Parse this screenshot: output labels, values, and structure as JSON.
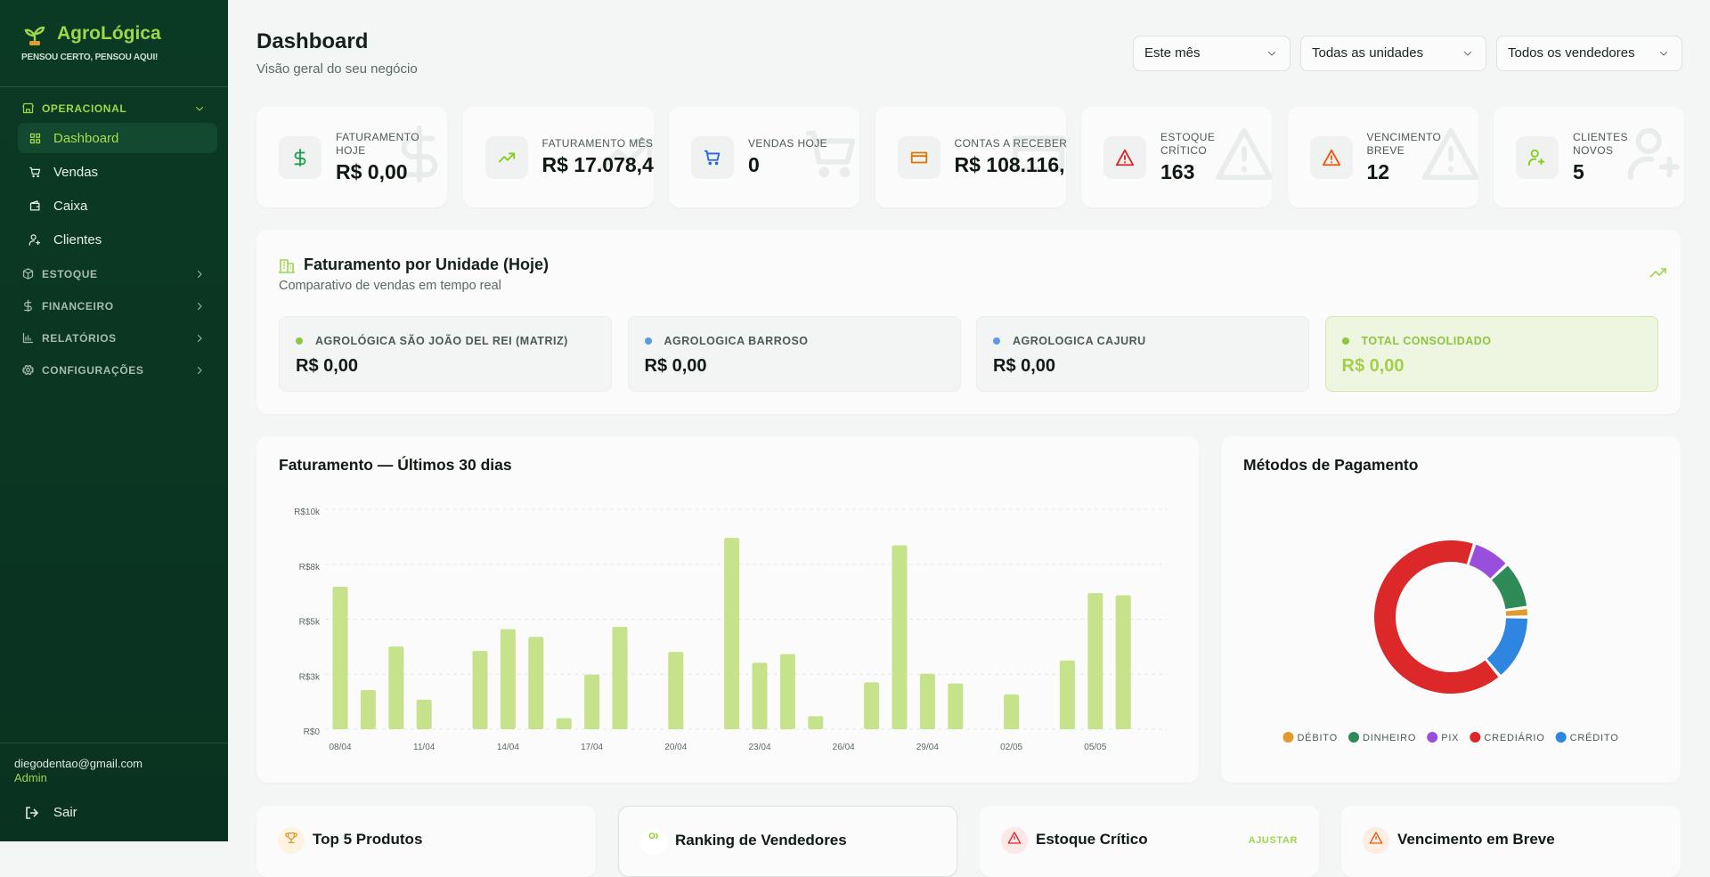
{
  "sidebar": {
    "brand": "AgroLógica",
    "tagline": "PENSOU CERTO, PENSOU AQUI!",
    "sections": [
      {
        "label": "OPERACIONAL",
        "items": [
          "Dashboard",
          "Vendas",
          "Caixa",
          "Clientes"
        ]
      },
      {
        "label": "ESTOQUE"
      },
      {
        "label": "FINANCEIRO"
      },
      {
        "label": "RELATÓRIOS"
      },
      {
        "label": "CONFIGURAÇÕES"
      }
    ],
    "user": {
      "email": "diegodentao@gmail.com",
      "role": "Admin"
    },
    "logout": "Sair"
  },
  "header": {
    "title": "Dashboard",
    "subtitle": "Visão geral do seu negócio",
    "filters": [
      "Este mês",
      "Todas as unidades",
      "Todos os vendedores"
    ]
  },
  "kpis": [
    {
      "label": "FATURAMENTO HOJE",
      "value": "R$ 0,00"
    },
    {
      "label": "FATURAMENTO MÊS",
      "value": "R$ 17.078,4"
    },
    {
      "label": "VENDAS HOJE",
      "value": "0"
    },
    {
      "label": "CONTAS A RECEBER",
      "value": "R$ 108.116,"
    },
    {
      "label": "ESTOQUE CRÍTICO",
      "value": "163"
    },
    {
      "label": "VENCIMENTO BREVE",
      "value": "12"
    },
    {
      "label": "CLIENTES NOVOS",
      "value": "5"
    }
  ],
  "units": {
    "title": "Faturamento por Unidade (Hoje)",
    "subtitle": "Comparativo de vendas em tempo real",
    "items": [
      {
        "name": "AGROLÓGICA SÃO JOÃO DEL REI (MATRIZ)",
        "value": "R$ 0,00"
      },
      {
        "name": "AGROLOGICA BARROSO",
        "value": "R$ 0,00"
      },
      {
        "name": "AGROLOGICA CAJURU",
        "value": "R$ 0,00"
      },
      {
        "name": "TOTAL CONSOLIDADO",
        "value": "R$ 0,00"
      }
    ]
  },
  "chart_data": [
    {
      "type": "bar",
      "title": "Faturamento — Últimos 30 dias",
      "categories": [
        "08/04",
        null,
        null,
        "11/04",
        null,
        null,
        "14/04",
        null,
        null,
        "17/04",
        null,
        null,
        "20/04",
        null,
        null,
        "23/04",
        null,
        null,
        "26/04",
        null,
        null,
        "29/04",
        null,
        null,
        "02/05",
        null,
        null,
        "05/05",
        null,
        null
      ],
      "values": [
        6480,
        1780,
        3760,
        1340,
        0,
        3560,
        4550,
        4200,
        500,
        2480,
        4650,
        0,
        3510,
        0,
        8700,
        3020,
        3410,
        590,
        0,
        2130,
        8360,
        2520,
        2080,
        0,
        1580,
        0,
        3120,
        6190,
        6090,
        0
      ],
      "color": "#c6e28b",
      "ylim": [
        0,
        10000
      ],
      "yticks": [
        {
          "value": 0,
          "label": "R$0"
        },
        {
          "value": 2500,
          "label": "R$3k"
        },
        {
          "value": 5000,
          "label": "R$5k"
        },
        {
          "value": 7500,
          "label": "R$8k"
        },
        {
          "value": 10000,
          "label": "R$10k"
        }
      ],
      "grid": true
    },
    {
      "type": "pie",
      "title": "Métodos de Pagamento",
      "categories": [
        "DÉBITO",
        "DINHEIRO",
        "PIX",
        "CREDIÁRIO",
        "CRÉDITO"
      ],
      "values": [
        2,
        10,
        8,
        66,
        14
      ],
      "colors": [
        "#e09a2d",
        "#2e8b57",
        "#9a4fdc",
        "#dc2828",
        "#2f86e0"
      ],
      "legend": "bottom"
    }
  ],
  "bottom_cards": [
    {
      "title": "Top 5 Produtos"
    },
    {
      "title": "Ranking de Vendedores"
    },
    {
      "title": "Estoque Crítico",
      "action": "AJUSTAR"
    },
    {
      "title": "Vencimento em Breve"
    }
  ]
}
